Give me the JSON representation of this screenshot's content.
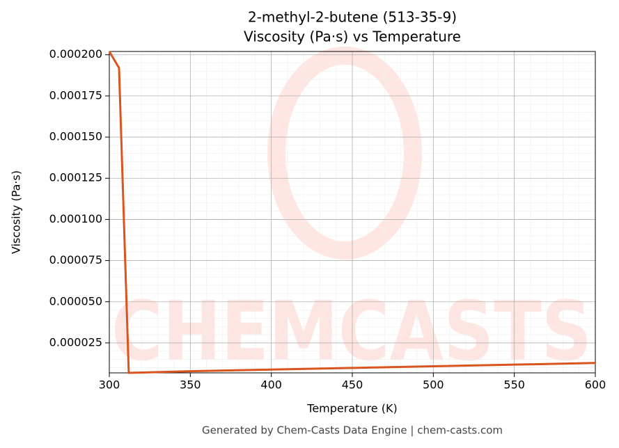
{
  "chart_data": {
    "type": "line",
    "title": "2-methyl-2-butene (513-35-9)",
    "subtitle": "Viscosity (Pa·s) vs Temperature",
    "x_label": "Temperature (K)",
    "y_label": "Viscosity (Pa·s)",
    "watermark": "CHEMCASTS",
    "footer": "Generated by Chem-Casts Data Engine | chem-casts.com",
    "x": [
      300,
      306,
      312,
      350,
      400,
      450,
      500,
      550,
      600
    ],
    "series": [
      {
        "name": "Viscosity",
        "color": "#d9541e",
        "values": [
          0.000202,
          0.000192,
          6.8e-06,
          7.8e-06,
          8.8e-06,
          9.8e-06,
          1.08e-05,
          1.18e-05,
          1.28e-05
        ]
      }
    ],
    "xlim": [
      300,
      600
    ],
    "xticks": [
      300,
      350,
      400,
      450,
      500,
      550,
      600
    ],
    "ylim": [
      6.8e-06,
      0.000202
    ],
    "yticks": [
      2.5e-05,
      {
        "value": 5e-05,
        "label": "0.000050"
      },
      7.5e-05,
      {
        "value": 0.0001,
        "label": "0.000100"
      },
      0.000125,
      {
        "value": 0.00015,
        "label": "0.000150"
      },
      0.000175,
      {
        "value": 0.0002,
        "label": "0.000200"
      }
    ],
    "grid": true
  }
}
